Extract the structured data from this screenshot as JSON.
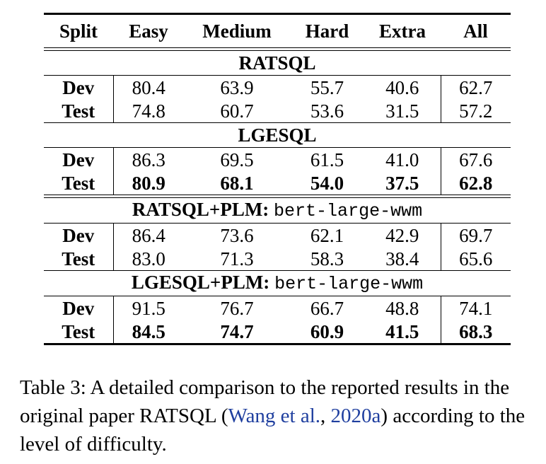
{
  "headers": [
    "Split",
    "Easy",
    "Medium",
    "Hard",
    "Extra",
    "All"
  ],
  "groups": [
    {
      "name": "RATSQL",
      "plm": "",
      "rows": [
        {
          "split": "Dev",
          "values": [
            "80.4",
            "63.9",
            "55.7",
            "40.6",
            "62.7"
          ],
          "bold": false
        },
        {
          "split": "Test",
          "values": [
            "74.8",
            "60.7",
            "53.6",
            "31.5",
            "57.2"
          ],
          "bold": false
        }
      ]
    },
    {
      "name": "LGESQL",
      "plm": "",
      "rows": [
        {
          "split": "Dev",
          "values": [
            "86.3",
            "69.5",
            "61.5",
            "41.0",
            "67.6"
          ],
          "bold": false
        },
        {
          "split": "Test",
          "values": [
            "80.9",
            "68.1",
            "54.0",
            "37.5",
            "62.8"
          ],
          "bold": true
        }
      ]
    },
    {
      "name": "RATSQL+PLM:",
      "plm": "bert-large-wwm",
      "rows": [
        {
          "split": "Dev",
          "values": [
            "86.4",
            "73.6",
            "62.1",
            "42.9",
            "69.7"
          ],
          "bold": false
        },
        {
          "split": "Test",
          "values": [
            "83.0",
            "71.3",
            "58.3",
            "38.4",
            "65.6"
          ],
          "bold": false
        }
      ]
    },
    {
      "name": "LGESQL+PLM:",
      "plm": "bert-large-wwm",
      "rows": [
        {
          "split": "Dev",
          "values": [
            "91.5",
            "76.7",
            "66.7",
            "48.8",
            "74.1"
          ],
          "bold": false
        },
        {
          "split": "Test",
          "values": [
            "84.5",
            "74.7",
            "60.9",
            "41.5",
            "68.3"
          ],
          "bold": true
        }
      ]
    }
  ],
  "caption": {
    "prefix": "Table 3: A detailed comparison to the reported results in the original paper RATSQL (",
    "cite_authors": "Wang et al.",
    "cite_sep": ", ",
    "cite_year": "2020a",
    "suffix": ") according to the level of difficulty."
  }
}
